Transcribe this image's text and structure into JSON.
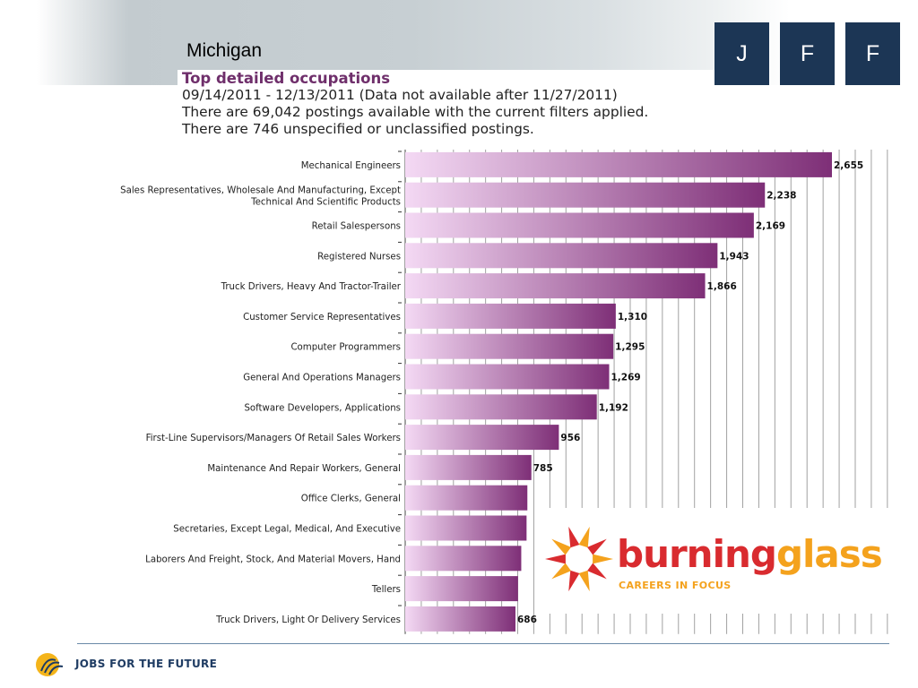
{
  "header": {
    "state_title": "Michigan",
    "logo_letters": [
      "J",
      "F",
      "F"
    ]
  },
  "info": {
    "title": "Top detailed occupations",
    "date_line": "09/14/2011 - 12/13/2011 (Data not available after 11/27/2011)",
    "postings_line": "There are 69,042 postings available with the current filters applied.",
    "unspecified_line": "There are 746 unspecified or unclassified postings."
  },
  "chart_data": {
    "type": "bar",
    "orientation": "horizontal",
    "title": "Top detailed occupations",
    "categories": [
      "Mechanical Engineers",
      "Sales Representatives, Wholesale And Manufacturing, Except Technical And Scientific Products",
      "Retail Salespersons",
      "Registered Nurses",
      "Truck Drivers, Heavy And Tractor-Trailer",
      "Customer Service Representatives",
      "Computer Programmers",
      "General And Operations Managers",
      "Software Developers, Applications",
      "First-Line Supervisors/Managers Of Retail Sales Workers",
      "Maintenance And Repair Workers, General",
      "Office Clerks, General",
      "Secretaries, Except Legal, Medical, And Executive",
      "Laborers And Freight, Stock, And Material Movers, Hand",
      "Tellers",
      "Truck Drivers, Light Or Delivery Services"
    ],
    "values": [
      2655,
      2238,
      2169,
      1943,
      1866,
      1310,
      1295,
      1269,
      1192,
      956,
      785,
      760,
      755,
      722,
      702,
      686
    ],
    "value_labels": [
      "2,655",
      "2,238",
      "2,169",
      "1,943",
      "1,866",
      "1,310",
      "1,295",
      "1,269",
      "1,192",
      "956",
      "785",
      "",
      "",
      "",
      "",
      "686"
    ],
    "xlim": [
      0,
      3000
    ],
    "grid": true,
    "colors": {
      "bar_start": "#f4d9f4",
      "bar_end": "#7e2f77"
    }
  },
  "overlay_logo": {
    "word_part1": "burning",
    "word_part2": "glass",
    "tagline": "CAREERS IN FOCUS"
  },
  "footer": {
    "org_name": "JOBS FOR THE FUTURE"
  }
}
